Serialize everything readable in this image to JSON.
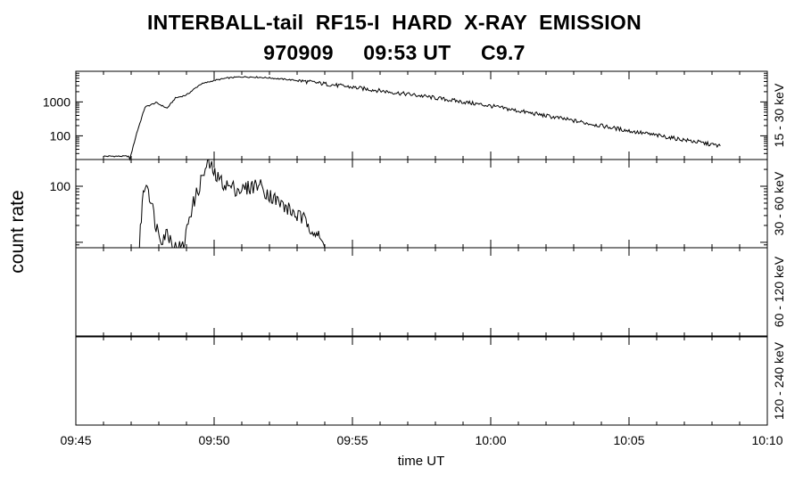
{
  "chart_data": {
    "type": "line",
    "title": "INTERBALL-tail  RF15-I  HARD  X-RAY  EMISSION",
    "subtitle": "970909     09:53 UT     C9.7",
    "xlabel": "time UT",
    "ylabel": "count rate",
    "x_ticks": [
      "09:45",
      "09:50",
      "09:55",
      "10:00",
      "10:05",
      "10:10"
    ],
    "xlim": [
      "09:45",
      "10:10"
    ],
    "y_scale": "log",
    "grid": false,
    "panels": [
      {
        "name": "15 - 30 keV",
        "y_ticks": [
          100,
          1000
        ],
        "ylim": [
          20,
          8000
        ],
        "series": [
          {
            "x": [
              "09:46.0",
              "09:46.9",
              "09:46.95",
              "09:47.2",
              "09:47.5",
              "09:47.9",
              "09:48.3",
              "09:48.6",
              "09:49.0",
              "09:49.5",
              "09:50.0",
              "09:50.5",
              "09:51.0",
              "09:51.5",
              "09:52.0",
              "09:53.0",
              "09:55.0",
              "09:57.5",
              "10:00.0",
              "10:02.5",
              "10:05.0",
              "10:07.5",
              "10:08.3"
            ],
            "y": [
              25,
              25,
              20,
              120,
              700,
              950,
              650,
              1300,
              1600,
              3300,
              4300,
              5100,
              5500,
              5400,
              5100,
              4300,
              2700,
              1500,
              760,
              330,
              140,
              65,
              50
            ]
          }
        ]
      },
      {
        "name": "30 - 60 keV",
        "y_ticks": [
          100
        ],
        "ylim": [
          8,
          300
        ],
        "series": [
          {
            "x": [
              "09:47.3",
              "09:47.4",
              "09:47.55",
              "09:47.7",
              "09:47.9",
              "09:48.1",
              "09:48.3",
              "09:48.6",
              "09:48.9",
              "09:49.1",
              "09:49.4",
              "09:49.6",
              "09:49.8",
              "09:50.1",
              "09:50.5",
              "09:51.0",
              "09:51.6",
              "09:52.0",
              "09:52.5",
              "09:53.0",
              "09:53.4",
              "09:53.7",
              "09:54.0"
            ],
            "y": [
              8,
              55,
              130,
              60,
              20,
              12,
              15,
              8,
              8,
              30,
              80,
              160,
              260,
              140,
              100,
              85,
              110,
              70,
              45,
              30,
              22,
              14,
              8
            ]
          }
        ]
      },
      {
        "name": "60 - 120 keV",
        "y_ticks": [],
        "series": []
      },
      {
        "name": "120 - 240 keV",
        "y_ticks": [],
        "series": []
      }
    ]
  }
}
